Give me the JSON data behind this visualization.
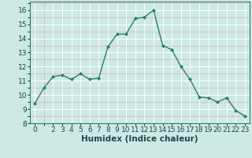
{
  "x": [
    0,
    1,
    2,
    3,
    4,
    5,
    6,
    7,
    8,
    9,
    10,
    11,
    12,
    13,
    14,
    15,
    16,
    17,
    18,
    19,
    20,
    21,
    22,
    23
  ],
  "y": [
    9.4,
    10.5,
    11.3,
    11.4,
    11.1,
    11.5,
    11.1,
    11.2,
    13.4,
    14.3,
    14.3,
    15.4,
    15.5,
    16.0,
    13.5,
    13.2,
    12.0,
    11.1,
    9.85,
    9.8,
    9.5,
    9.8,
    8.9,
    8.5
  ],
  "line_color": "#2e7d6e",
  "marker": "D",
  "marker_size": 2.0,
  "line_width": 1.0,
  "bg_color": "#cce9e5",
  "grid_color": "#ffffff",
  "xlabel": "Humidex (Indice chaleur)",
  "xlabel_fontsize": 7.5,
  "tick_fontsize": 6.5,
  "xlim": [
    -0.5,
    23.5
  ],
  "ylim": [
    8,
    16.6
  ],
  "yticks": [
    8,
    9,
    10,
    11,
    12,
    13,
    14,
    15,
    16
  ],
  "xticks": [
    0,
    2,
    3,
    4,
    5,
    6,
    7,
    8,
    9,
    10,
    11,
    12,
    13,
    14,
    15,
    16,
    17,
    18,
    19,
    20,
    21,
    22,
    23
  ],
  "spine_color": "#2e7d6e",
  "label_color": "#1a4a44"
}
